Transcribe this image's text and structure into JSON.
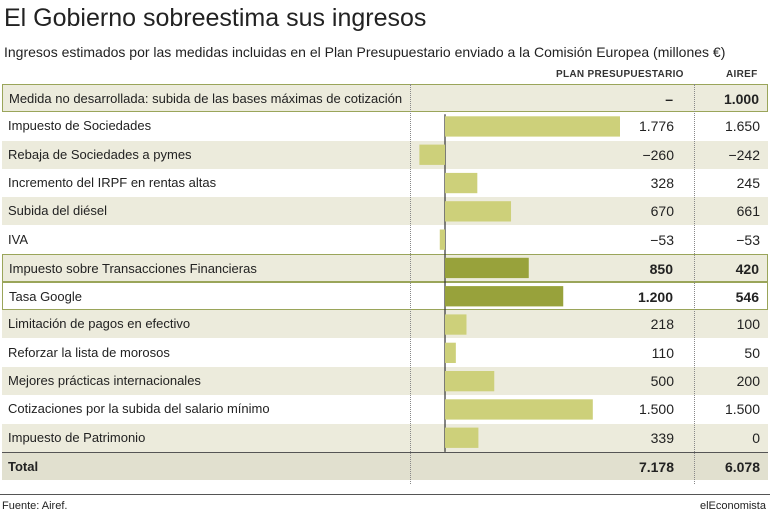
{
  "header": {
    "title": "El Gobierno sobreestima sus ingresos",
    "subtitle": "Ingresos estimados por las medidas incluidas en el Plan Presupuestario enviado a la Comisión Europea (millones €)",
    "col_plan": "PLAN PRESUPUESTARIO",
    "col_airef": "AIREF"
  },
  "colors": {
    "bar_light": "#cdd07a",
    "bar_dark": "#98a23b",
    "row_shade": "#ecebdc",
    "highlight_border": "#9aa55a"
  },
  "rows": [
    {
      "label": "Medida no desarrollada: subida de las bases máximas de cotización",
      "plan": "–",
      "airef": "1.000"
    },
    {
      "label": "Impuesto de Sociedades",
      "plan": "1.776",
      "airef": "1.650"
    },
    {
      "label": "Rebaja de Sociedades a pymes",
      "plan": "−260",
      "airef": "−242"
    },
    {
      "label": "Incremento del IRPF en rentas altas",
      "plan": "328",
      "airef": "245"
    },
    {
      "label": "Subida del diésel",
      "plan": "670",
      "airef": "661"
    },
    {
      "label": "IVA",
      "plan": "−53",
      "airef": "−53"
    },
    {
      "label": "Impuesto sobre Transacciones Financieras",
      "plan": "850",
      "airef": "420"
    },
    {
      "label": "Tasa Google",
      "plan": "1.200",
      "airef": "546"
    },
    {
      "label": "Limitación de pagos en efectivo",
      "plan": "218",
      "airef": "100"
    },
    {
      "label": "Reforzar la lista de morosos",
      "plan": "110",
      "airef": "50"
    },
    {
      "label": "Mejores prácticas internacionales",
      "plan": "500",
      "airef": "200"
    },
    {
      "label": "Cotizaciones por la subida del salario mínimo",
      "plan": "1.500",
      "airef": "1.500"
    },
    {
      "label": "Impuesto de Patrimonio",
      "plan": "339",
      "airef": "0"
    },
    {
      "label": "Total",
      "plan": "7.178",
      "airef": "6.078"
    }
  ],
  "chart_data": {
    "type": "bar",
    "orientation": "horizontal",
    "categories": [
      "Medida no desarrollada: subida de las bases máximas de cotización",
      "Impuesto de Sociedades",
      "Rebaja de Sociedades a pymes",
      "Incremento del IRPF en rentas altas",
      "Subida del diésel",
      "IVA",
      "Impuesto sobre Transacciones Financieras",
      "Tasa Google",
      "Limitación de pagos en efectivo",
      "Reforzar la lista de morosos",
      "Mejores prácticas internacionales",
      "Cotizaciones por la subida del salario mínimo",
      "Impuesto de Patrimonio"
    ],
    "series": [
      {
        "name": "PLAN PRESUPUESTARIO",
        "values": [
          null,
          1776,
          -260,
          328,
          670,
          -53,
          850,
          1200,
          218,
          110,
          500,
          1500,
          339
        ]
      },
      {
        "name": "AIREF",
        "values": [
          1000,
          1650,
          -242,
          245,
          661,
          -53,
          420,
          546,
          100,
          50,
          200,
          1500,
          0
        ]
      }
    ],
    "highlighted": [
      "Impuesto sobre Transacciones Financieras",
      "Tasa Google"
    ],
    "xlim": [
      -260,
      1776
    ]
  },
  "footer": {
    "source": "Fuente: Airef.",
    "brand": "elEconomista"
  }
}
